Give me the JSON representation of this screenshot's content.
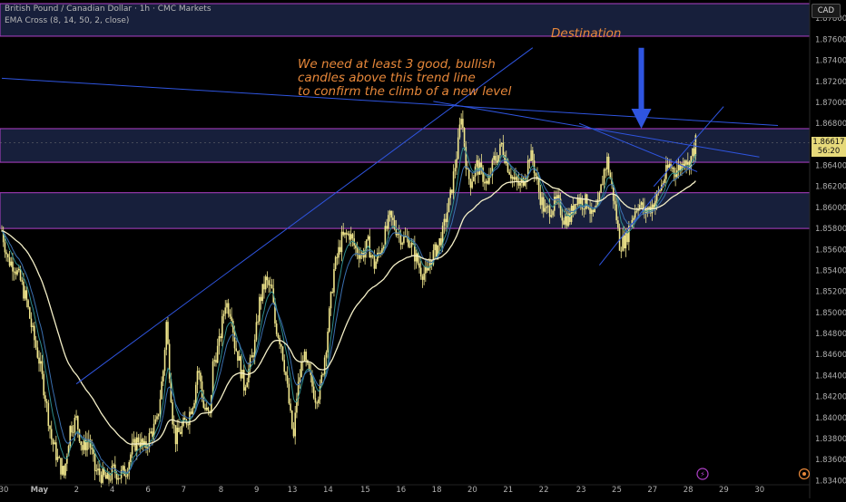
{
  "header": {
    "title": "British Pound / Canadian Dollar · 1h · CMC Markets",
    "indicator": "EMA Cross (8, 14, 50, 2, close)"
  },
  "currency_label": "CAD",
  "annotations": {
    "destination": "Destination",
    "message_lines": [
      "We need at least 3 good, bullish",
      "candles above this trend line",
      "to confirm the climb of a new level"
    ]
  },
  "current_price": {
    "value": "1.86617",
    "countdown": "56:20"
  },
  "colors": {
    "background": "#000000",
    "candle_up": "#f0e68c",
    "candle_down": "#f0e68c",
    "zone_fill": "#1b2545",
    "zone_border": "#b040c8",
    "trend_line": "#2f55e0",
    "ema_fast": "#2e8b8b",
    "ema_mid": "#3a6fb0",
    "ema_slow": "#f5f0c8",
    "annotation": "#e8883a",
    "arrow": "#2f55e0"
  },
  "chart_data": {
    "type": "candlestick",
    "title": "British Pound / Canadian Dollar · 1h · CMC Markets",
    "y_ticks": [
      "1.87800",
      "1.87600",
      "1.87400",
      "1.87200",
      "1.87000",
      "1.86800",
      "1.86617",
      "1.86400",
      "1.86200",
      "1.86000",
      "1.85800",
      "1.85600",
      "1.85400",
      "1.85200",
      "1.85000",
      "1.84800",
      "1.84600",
      "1.84400",
      "1.84200",
      "1.84000",
      "1.83800",
      "1.83600",
      "1.83400"
    ],
    "y_tick_values": [
      1.878,
      1.876,
      1.874,
      1.872,
      1.87,
      1.868,
      1.86617,
      1.864,
      1.862,
      1.86,
      1.858,
      1.856,
      1.854,
      1.852,
      1.85,
      1.848,
      1.846,
      1.844,
      1.842,
      1.84,
      1.838,
      1.836,
      1.834
    ],
    "ylim": [
      1.8336,
      1.8794
    ],
    "x_ticks": [
      "30",
      "May",
      "2",
      "4",
      "6",
      "7",
      "8",
      "9",
      "13",
      "14",
      "15",
      "16",
      "18",
      "20",
      "21",
      "22",
      "23",
      "25",
      "27",
      "28",
      "29",
      "30"
    ],
    "x_tick_index": [
      0,
      23,
      47,
      70,
      93,
      116,
      140,
      163,
      186,
      209,
      233,
      256,
      279,
      302,
      325,
      348,
      372,
      395,
      418,
      441,
      464,
      487
    ],
    "num_bars": 500,
    "zones": [
      {
        "name": "destination-zone",
        "low": 1.8763,
        "high": 1.8794
      },
      {
        "name": "upper-resistance-zone",
        "low": 1.8643,
        "high": 1.8675
      },
      {
        "name": "lower-support-zone",
        "low": 1.858,
        "high": 1.8614
      }
    ],
    "path_points": [
      [
        0,
        1.8578
      ],
      [
        4,
        1.855
      ],
      [
        8,
        1.8545
      ],
      [
        12,
        1.853
      ],
      [
        16,
        1.851
      ],
      [
        20,
        1.848
      ],
      [
        24,
        1.8455
      ],
      [
        28,
        1.842
      ],
      [
        32,
        1.838
      ],
      [
        36,
        1.836
      ],
      [
        40,
        1.8345
      ],
      [
        44,
        1.839
      ],
      [
        48,
        1.8398
      ],
      [
        52,
        1.837
      ],
      [
        56,
        1.838
      ],
      [
        60,
        1.835
      ],
      [
        64,
        1.8345
      ],
      [
        68,
        1.834
      ],
      [
        72,
        1.835
      ],
      [
        76,
        1.8345
      ],
      [
        80,
        1.835
      ],
      [
        84,
        1.837
      ],
      [
        88,
        1.838
      ],
      [
        92,
        1.837
      ],
      [
        96,
        1.8385
      ],
      [
        100,
        1.8395
      ],
      [
        104,
        1.8445
      ],
      [
        106,
        1.849
      ],
      [
        110,
        1.84
      ],
      [
        112,
        1.838
      ],
      [
        116,
        1.839
      ],
      [
        120,
        1.84
      ],
      [
        124,
        1.842
      ],
      [
        126,
        1.8445
      ],
      [
        128,
        1.8435
      ],
      [
        130,
        1.841
      ],
      [
        134,
        1.84
      ],
      [
        136,
        1.845
      ],
      [
        140,
        1.847
      ],
      [
        144,
        1.851
      ],
      [
        148,
        1.85
      ],
      [
        150,
        1.847
      ],
      [
        152,
        1.846
      ],
      [
        156,
        1.843
      ],
      [
        160,
        1.845
      ],
      [
        163,
        1.847
      ],
      [
        166,
        1.851
      ],
      [
        170,
        1.853
      ],
      [
        174,
        1.852
      ],
      [
        176,
        1.849
      ],
      [
        180,
        1.847
      ],
      [
        183,
        1.844
      ],
      [
        186,
        1.84
      ],
      [
        188,
        1.838
      ],
      [
        190,
        1.842
      ],
      [
        194,
        1.846
      ],
      [
        198,
        1.844
      ],
      [
        200,
        1.843
      ],
      [
        202,
        1.842
      ],
      [
        205,
        1.8425
      ],
      [
        209,
        1.847
      ],
      [
        214,
        1.854
      ],
      [
        219,
        1.857
      ],
      [
        224,
        1.8575
      ],
      [
        228,
        1.856
      ],
      [
        232,
        1.8555
      ],
      [
        236,
        1.8565
      ],
      [
        240,
        1.8545
      ],
      [
        244,
        1.856
      ],
      [
        248,
        1.858
      ],
      [
        250,
        1.859
      ],
      [
        254,
        1.858
      ],
      [
        258,
        1.857
      ],
      [
        262,
        1.857
      ],
      [
        266,
        1.8555
      ],
      [
        270,
        1.854
      ],
      [
        274,
        1.8535
      ],
      [
        276,
        1.855
      ],
      [
        280,
        1.856
      ],
      [
        284,
        1.8575
      ],
      [
        286,
        1.859
      ],
      [
        289,
        1.861
      ],
      [
        292,
        1.864
      ],
      [
        294,
        1.866
      ],
      [
        296,
        1.869
      ],
      [
        297,
        1.8675
      ],
      [
        300,
        1.863
      ],
      [
        302,
        1.8625
      ],
      [
        306,
        1.864
      ],
      [
        310,
        1.863
      ],
      [
        313,
        1.862
      ],
      [
        317,
        1.8645
      ],
      [
        320,
        1.865
      ],
      [
        322,
        1.866
      ],
      [
        326,
        1.864
      ],
      [
        330,
        1.8625
      ],
      [
        334,
        1.862
      ],
      [
        338,
        1.8635
      ],
      [
        340,
        1.865
      ],
      [
        342,
        1.8645
      ],
      [
        346,
        1.8615
      ],
      [
        350,
        1.8595
      ],
      [
        354,
        1.86
      ],
      [
        358,
        1.8605
      ],
      [
        362,
        1.859
      ],
      [
        366,
        1.859
      ],
      [
        370,
        1.861
      ],
      [
        374,
        1.8605
      ],
      [
        378,
        1.8605
      ],
      [
        380,
        1.859
      ],
      [
        384,
        1.86
      ],
      [
        388,
        1.8635
      ],
      [
        390,
        1.8645
      ],
      [
        394,
        1.861
      ],
      [
        396,
        1.859
      ],
      [
        398,
        1.8565
      ],
      [
        402,
        1.857
      ],
      [
        406,
        1.859
      ],
      [
        410,
        1.8605
      ],
      [
        414,
        1.8595
      ],
      [
        418,
        1.86
      ],
      [
        422,
        1.861
      ],
      [
        426,
        1.8625
      ],
      [
        430,
        1.864
      ],
      [
        434,
        1.8635
      ],
      [
        438,
        1.864
      ],
      [
        440,
        1.865
      ],
      [
        442,
        1.864
      ],
      [
        446,
        1.8655
      ],
      [
        447,
        1.8662
      ]
    ],
    "ema_series": [
      {
        "key": "ema_fast",
        "period": 8
      },
      {
        "key": "ema_mid",
        "period": 14
      },
      {
        "key": "ema_slow",
        "period": 50
      }
    ],
    "trend_lines": [
      {
        "name": "rising-trend-line",
        "from": [
          48,
          1.8432
        ],
        "to": [
          342,
          1.8752
        ]
      },
      {
        "name": "long-descending-trend-line",
        "from": [
          0,
          1.8723
        ],
        "to": [
          500,
          1.8678
        ]
      },
      {
        "name": "short-descending-trend-line-1",
        "from": [
          278,
          1.8701
        ],
        "to": [
          488,
          1.8648
        ]
      },
      {
        "name": "short-descending-trend-line-2",
        "from": [
          372,
          1.868
        ],
        "to": [
          448,
          1.8634
        ]
      },
      {
        "name": "uptrend-channel-line-1",
        "from": [
          385,
          1.8545
        ],
        "to": [
          427,
          1.8623
        ]
      },
      {
        "name": "uptrend-channel-line-2",
        "from": [
          420,
          1.862
        ],
        "to": [
          465,
          1.8696
        ]
      }
    ],
    "arrow": {
      "x": 412,
      "from_price": 1.8752,
      "to_price": 1.8675
    }
  }
}
